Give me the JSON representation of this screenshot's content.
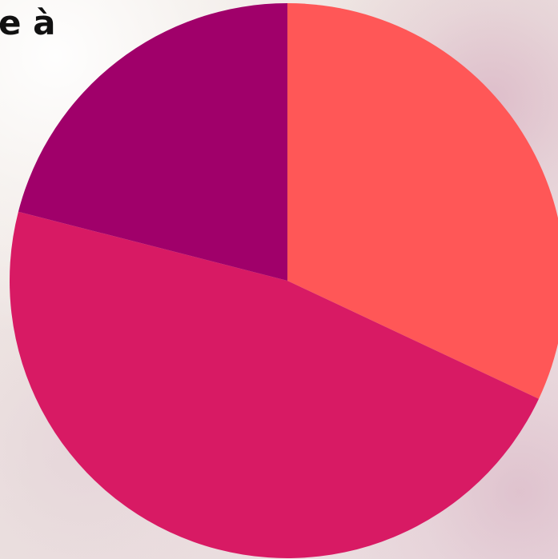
{
  "page": {
    "title_fragment": "e à"
  },
  "chart_data": {
    "type": "pie",
    "title": "",
    "values": [
      32,
      47,
      21
    ],
    "colors": [
      "#FF5757",
      "#D81A64",
      "#A0006A"
    ],
    "start_angle_deg": -90,
    "direction": "clockwise",
    "legend": "none"
  }
}
